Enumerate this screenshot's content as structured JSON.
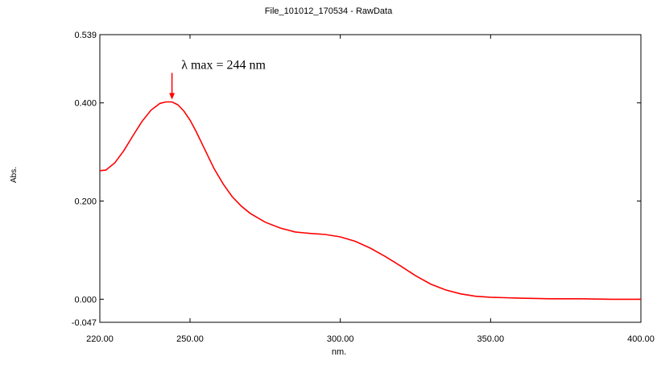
{
  "chart_data": {
    "type": "line",
    "title": "File_101012_170534 - RawData",
    "xlabel": "nm.",
    "ylabel": "Abs.",
    "xlim": [
      220,
      400
    ],
    "ylim": [
      -0.047,
      0.539
    ],
    "x_ticks": [
      220,
      250,
      300,
      350,
      400
    ],
    "x_tick_labels": [
      "220.00",
      "250.00",
      "300.00",
      "350.00",
      "400.00"
    ],
    "y_ticks": [
      -0.047,
      0.0,
      0.2,
      0.4,
      0.539
    ],
    "y_tick_labels": [
      "-0.047",
      "0.000",
      "0.200",
      "0.400",
      "0.539"
    ],
    "grid": false,
    "line_color": "#ff0000",
    "annotation": {
      "text": "λ max = 244 nm",
      "x": 244,
      "y": 0.402
    },
    "series": [
      {
        "x": [
          220,
          222,
          225,
          228,
          231,
          234,
          237,
          240,
          242,
          244,
          246,
          248,
          250,
          252,
          255,
          258,
          261,
          264,
          267,
          270,
          275,
          280,
          285,
          290,
          295,
          300,
          305,
          310,
          315,
          320,
          325,
          330,
          335,
          340,
          345,
          350,
          355,
          360,
          370,
          380,
          390,
          400
        ],
        "y": [
          0.262,
          0.263,
          0.278,
          0.303,
          0.333,
          0.362,
          0.385,
          0.399,
          0.402,
          0.402,
          0.396,
          0.383,
          0.365,
          0.342,
          0.304,
          0.266,
          0.235,
          0.209,
          0.19,
          0.175,
          0.157,
          0.145,
          0.137,
          0.134,
          0.132,
          0.127,
          0.118,
          0.104,
          0.087,
          0.068,
          0.048,
          0.031,
          0.019,
          0.011,
          0.006,
          0.004,
          0.003,
          0.002,
          0.001,
          0.001,
          0.0,
          0.0
        ]
      }
    ]
  }
}
